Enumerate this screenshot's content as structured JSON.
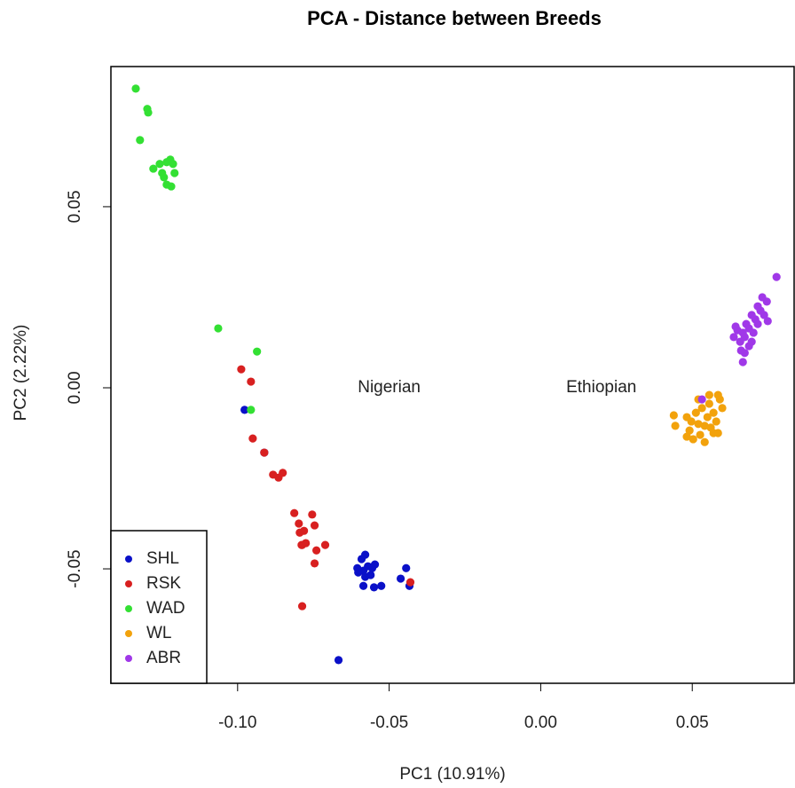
{
  "chart_data": {
    "type": "scatter",
    "title": "PCA - Distance between Breeds",
    "x_label": "PC1 (10.91%)",
    "y_label": "PC2 (2.22%)",
    "xlim": [
      -0.1418,
      0.0836
    ],
    "ylim": [
      -0.0816,
      0.0887
    ],
    "xticks": [
      {
        "value": -0.1,
        "label": "-0.10"
      },
      {
        "value": -0.05,
        "label": "-0.05"
      },
      {
        "value": 0,
        "label": "0.00"
      },
      {
        "value": 0.05,
        "label": "0.05"
      }
    ],
    "yticks": [
      {
        "value": -0.05,
        "label": "-0.05"
      },
      {
        "value": 0,
        "label": "0.00"
      },
      {
        "value": 0.05,
        "label": "0.05"
      }
    ],
    "legend": "bottomleft",
    "annotations": [
      {
        "text": "Nigerian",
        "x": -0.05,
        "y": 0
      },
      {
        "text": "Ethiopian",
        "x": 0.02,
        "y": 0
      }
    ],
    "series": [
      {
        "name": "SHL",
        "color": "#0a10c8",
        "x": [
          -0.0977,
          -0.0912,
          -0.0667,
          -0.0591,
          -0.0585,
          -0.0602,
          -0.0579,
          -0.057,
          -0.0556,
          -0.0585,
          -0.055,
          -0.0526,
          -0.0561,
          -0.0605,
          -0.0462,
          -0.0444,
          -0.0433,
          -0.0547,
          -0.0579
        ],
        "y": [
          -0.0061,
          -0.0179,
          -0.0752,
          -0.0473,
          -0.0505,
          -0.051,
          -0.0522,
          -0.0493,
          -0.0498,
          -0.0547,
          -0.0551,
          -0.0547,
          -0.0517,
          -0.0498,
          -0.0527,
          -0.0498,
          -0.0547,
          -0.0488,
          -0.0461
        ]
      },
      {
        "name": "RSK",
        "color": "#d82020",
        "x": [
          -0.0988,
          -0.0956,
          -0.095,
          -0.0912,
          -0.0883,
          -0.0865,
          -0.0851,
          -0.0813,
          -0.0798,
          -0.0781,
          -0.0754,
          -0.0746,
          -0.0795,
          -0.0775,
          -0.0789,
          -0.074,
          -0.0711,
          -0.0746,
          -0.0787,
          -0.0787,
          -0.043
        ],
        "y": [
          0.0051,
          0.0017,
          -0.014,
          -0.0179,
          -0.024,
          -0.0248,
          -0.0235,
          -0.0346,
          -0.0375,
          -0.0395,
          -0.035,
          -0.038,
          -0.04,
          -0.0429,
          -0.0434,
          -0.0449,
          -0.0434,
          -0.0485,
          -0.0434,
          -0.0603,
          -0.0537
        ]
      },
      {
        "name": "WAD",
        "color": "#33e033",
        "x": [
          -0.1336,
          -0.1298,
          -0.1295,
          -0.1322,
          -0.1278,
          -0.1257,
          -0.1249,
          -0.1234,
          -0.1222,
          -0.1213,
          -0.1243,
          -0.1234,
          -0.1219,
          -0.1208,
          -0.1064,
          -0.0936,
          -0.0956
        ],
        "y": [
          0.0826,
          0.077,
          0.076,
          0.0684,
          0.0605,
          0.0618,
          0.0593,
          0.0623,
          0.063,
          0.0618,
          0.0581,
          0.0561,
          0.0556,
          0.0593,
          0.0164,
          0.01,
          -0.0061
        ]
      },
      {
        "name": "WL",
        "color": "#f2a20c",
        "x": [
          0.0439,
          0.0444,
          0.0482,
          0.0491,
          0.0497,
          0.0512,
          0.052,
          0.0526,
          0.0532,
          0.0541,
          0.055,
          0.0556,
          0.0561,
          0.057,
          0.0579,
          0.0585,
          0.0591,
          0.0599,
          0.0503,
          0.052,
          0.0556,
          0.0585,
          0.0482,
          0.0541,
          0.057
        ],
        "y": [
          -0.0076,
          -0.0105,
          -0.0081,
          -0.0118,
          -0.0093,
          -0.0069,
          -0.01,
          -0.013,
          -0.0056,
          -0.015,
          -0.0081,
          -0.0044,
          -0.011,
          -0.0069,
          -0.0093,
          -0.0125,
          -0.0032,
          -0.0056,
          -0.0142,
          -0.0032,
          -0.002,
          -0.002,
          -0.0135,
          -0.0105,
          -0.0125
        ]
      },
      {
        "name": "ABR",
        "color": "#a038e8",
        "x": [
          0.0778,
          0.0746,
          0.0731,
          0.0725,
          0.0716,
          0.0708,
          0.0696,
          0.0687,
          0.0678,
          0.0673,
          0.0667,
          0.0658,
          0.0649,
          0.0643,
          0.0702,
          0.0687,
          0.0673,
          0.0667,
          0.0696,
          0.0716,
          0.0737,
          0.0749,
          0.0637,
          0.0661,
          0.0532
        ],
        "y": [
          0.0306,
          0.0238,
          0.025,
          0.0213,
          0.0225,
          0.0189,
          0.0201,
          0.0164,
          0.0176,
          0.014,
          0.0152,
          0.0127,
          0.0159,
          0.0169,
          0.0152,
          0.0115,
          0.0096,
          0.0071,
          0.0127,
          0.0176,
          0.0201,
          0.0184,
          0.014,
          0.0103,
          -0.0032
        ]
      }
    ]
  }
}
